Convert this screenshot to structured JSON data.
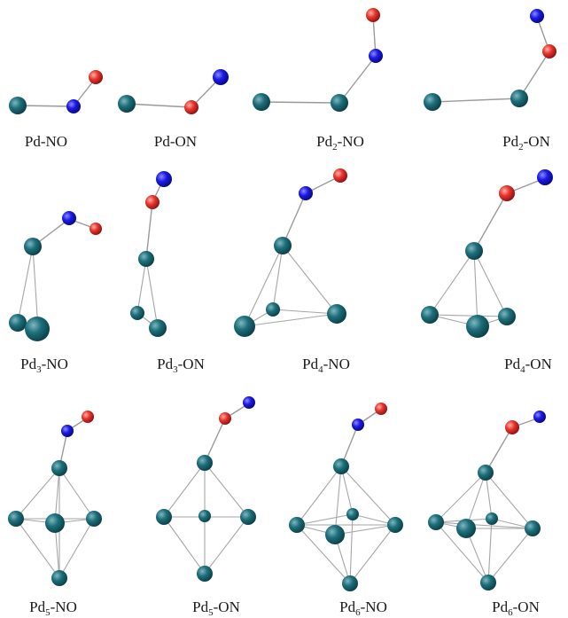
{
  "colors": {
    "pd": "#0f5a66",
    "pd_highlight": "#7fb7c0",
    "n": "#1010e8",
    "o": "#e83030",
    "bond": "#9a9a9a"
  },
  "structures": [
    {
      "id": "pd1-no",
      "label": "Pd-NO"
    },
    {
      "id": "pd1-on",
      "label": "Pd-ON"
    },
    {
      "id": "pd2-no",
      "label": "Pd",
      "sub": "2",
      "suffix": "-NO"
    },
    {
      "id": "pd2-on",
      "label": "Pd",
      "sub": "2",
      "suffix": "-ON"
    },
    {
      "id": "pd3-no",
      "label": "Pd",
      "sub": "3",
      "suffix": "-NO"
    },
    {
      "id": "pd3-on",
      "label": "Pd",
      "sub": "3",
      "suffix": "-ON"
    },
    {
      "id": "pd4-no",
      "label": "Pd",
      "sub": "4",
      "suffix": "-NO"
    },
    {
      "id": "pd4-on",
      "label": "Pd",
      "sub": "4",
      "suffix": "-ON"
    },
    {
      "id": "pd5-no",
      "label": "Pd",
      "sub": "5",
      "suffix": "-NO"
    },
    {
      "id": "pd5-on",
      "label": "Pd",
      "sub": "5",
      "suffix": "-ON"
    },
    {
      "id": "pd6-no",
      "label": "Pd",
      "sub": "6",
      "suffix": "-NO"
    },
    {
      "id": "pd6-on",
      "label": "Pd",
      "sub": "6",
      "suffix": "-ON"
    }
  ]
}
